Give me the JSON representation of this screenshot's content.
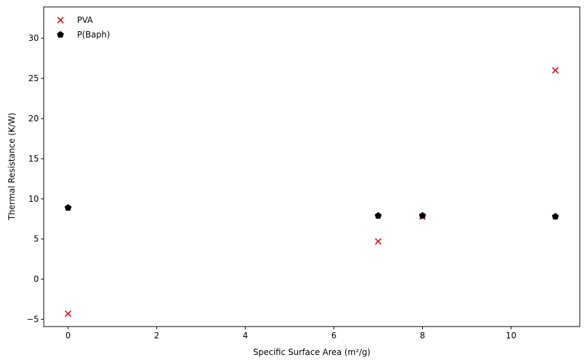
{
  "chart_data": {
    "type": "scatter",
    "title": "",
    "xlabel": "Specific Surface Area (m²/g)",
    "ylabel": "Thermal Resistance (K/W)",
    "xlim": [
      -0.55,
      11.55
    ],
    "ylim": [
      -5.9,
      33.9
    ],
    "xticks": [
      0,
      2,
      4,
      6,
      8,
      10
    ],
    "yticks": [
      -5,
      0,
      5,
      10,
      15,
      20,
      25,
      30
    ],
    "grid": false,
    "legend_position": "top-left",
    "series": [
      {
        "name": "PVA",
        "marker": "x",
        "color": "#e41a1c",
        "x": [
          0,
          7,
          8,
          11
        ],
        "y": [
          -4.3,
          4.7,
          7.8,
          26.0
        ]
      },
      {
        "name": "P(Baph)",
        "marker": "pentagon",
        "color": "#000000",
        "x": [
          0,
          7,
          8,
          11
        ],
        "y": [
          8.9,
          7.9,
          7.9,
          7.8
        ]
      }
    ]
  }
}
